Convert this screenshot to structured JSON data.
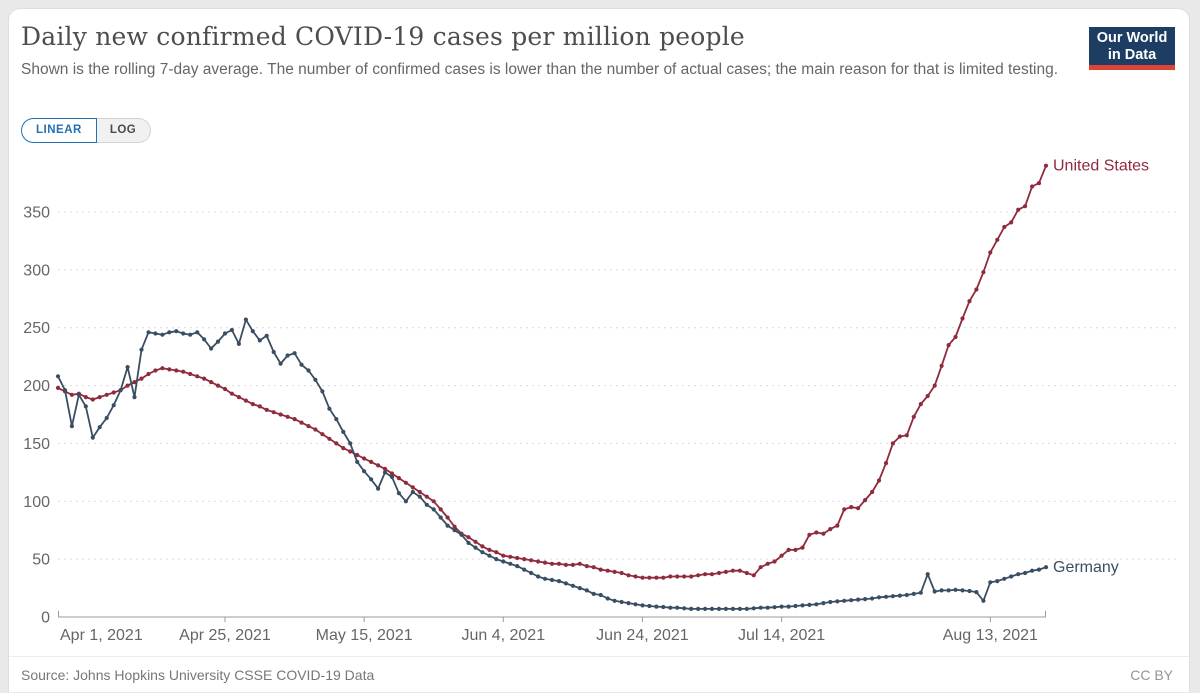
{
  "header": {
    "title": "Daily new confirmed COVID-19 cases per million people",
    "subtitle": "Shown is the rolling 7-day average. The number of confirmed cases is lower than the number of actual cases; the main reason for that is limited testing."
  },
  "logo": {
    "line1": "Our World",
    "line2": "in Data",
    "bg_color": "#1d3d63",
    "bar_color": "#dc4437"
  },
  "toggle": {
    "linear_label": "LINEAR",
    "log_label": "LOG",
    "active": "LINEAR",
    "active_color": "#2271b5"
  },
  "footer": {
    "source": "Source: Johns Hopkins University CSSE COVID-19 Data",
    "license": "CC BY"
  },
  "chart_data": {
    "type": "line",
    "title": "Daily new confirmed COVID-19 cases per million people",
    "x_axis": {
      "start_date": "2021-04-01",
      "end_date": "2021-08-21",
      "cadence": "daily",
      "tick_day_indices": [
        0,
        24,
        44,
        64,
        84,
        104,
        134
      ],
      "tick_labels": [
        "Apr 1, 2021",
        "Apr 25, 2021",
        "May 15, 2021",
        "Jun 4, 2021",
        "Jun 24, 2021",
        "Jul 14, 2021",
        "Aug 13, 2021"
      ]
    },
    "y_axis": {
      "ticks": [
        0,
        50,
        100,
        150,
        200,
        250,
        300,
        350
      ],
      "min": 0,
      "max": 390,
      "gridlines": "dashed"
    },
    "legend_position": "labels at end of lines",
    "grid_color": "#dcdcdc",
    "axis_color": "#9b9b9b",
    "tick_text_color": "#666666",
    "series": [
      {
        "name": "United States",
        "color": "#8f2b3c",
        "values": [
          198,
          195,
          192,
          193,
          190,
          188,
          190,
          192,
          194,
          196,
          200,
          203,
          206,
          210,
          213,
          215,
          214,
          213,
          212,
          210,
          208,
          206,
          203,
          200,
          197,
          193,
          190,
          187,
          184,
          182,
          179,
          177,
          175,
          173,
          171,
          168,
          165,
          162,
          158,
          154,
          150,
          146,
          143,
          140,
          137,
          134,
          131,
          128,
          124,
          120,
          116,
          112,
          108,
          104,
          100,
          93,
          86,
          78,
          72,
          69,
          65,
          61,
          58,
          56,
          53,
          52,
          51,
          50,
          49,
          48,
          47,
          46,
          46,
          45,
          45,
          46,
          44,
          43,
          41,
          40,
          39,
          38,
          36,
          35,
          34,
          34,
          34,
          34,
          35,
          35,
          35,
          35,
          36,
          37,
          37,
          38,
          39,
          40,
          40,
          38,
          36,
          43,
          46,
          48,
          53,
          58,
          58,
          60,
          71,
          73,
          72,
          76,
          79,
          93,
          95,
          94,
          101,
          108,
          118,
          133,
          150,
          156,
          157,
          173,
          184,
          191,
          200,
          217,
          235,
          242,
          258,
          273,
          283,
          298,
          315,
          326,
          337,
          341,
          352,
          355,
          372,
          375,
          390
        ]
      },
      {
        "name": "Germany",
        "color": "#3a4e63",
        "values": [
          208,
          196,
          165,
          192,
          182,
          155,
          164,
          172,
          183,
          196,
          216,
          190,
          231,
          246,
          245,
          244,
          246,
          247,
          245,
          244,
          246,
          240,
          232,
          238,
          245,
          248,
          236,
          257,
          247,
          239,
          243,
          229,
          219,
          226,
          228,
          218,
          213,
          205,
          195,
          180,
          171,
          160,
          150,
          134,
          126,
          119,
          111,
          125,
          121,
          107,
          100,
          108,
          104,
          97,
          93,
          86,
          79,
          75,
          71,
          64,
          60,
          56,
          53,
          50,
          48,
          46,
          44,
          41,
          38,
          35,
          33,
          32,
          31,
          29,
          27,
          25,
          23,
          20,
          19,
          16,
          14,
          13,
          12,
          11,
          10,
          9.5,
          9,
          8.6,
          8,
          8,
          7.5,
          7,
          7,
          7,
          7,
          7,
          7,
          7,
          7,
          7,
          7.5,
          8,
          8,
          8.5,
          9,
          9,
          9.5,
          10,
          10.5,
          11,
          12,
          13,
          13.5,
          14,
          14.5,
          15,
          15.5,
          16,
          17,
          17.5,
          18,
          18.5,
          19,
          20,
          21,
          37,
          22,
          23,
          23,
          23.5,
          23,
          22.5,
          21.5,
          14,
          30,
          31,
          33,
          35,
          37,
          38,
          40,
          41,
          43
        ]
      }
    ]
  }
}
